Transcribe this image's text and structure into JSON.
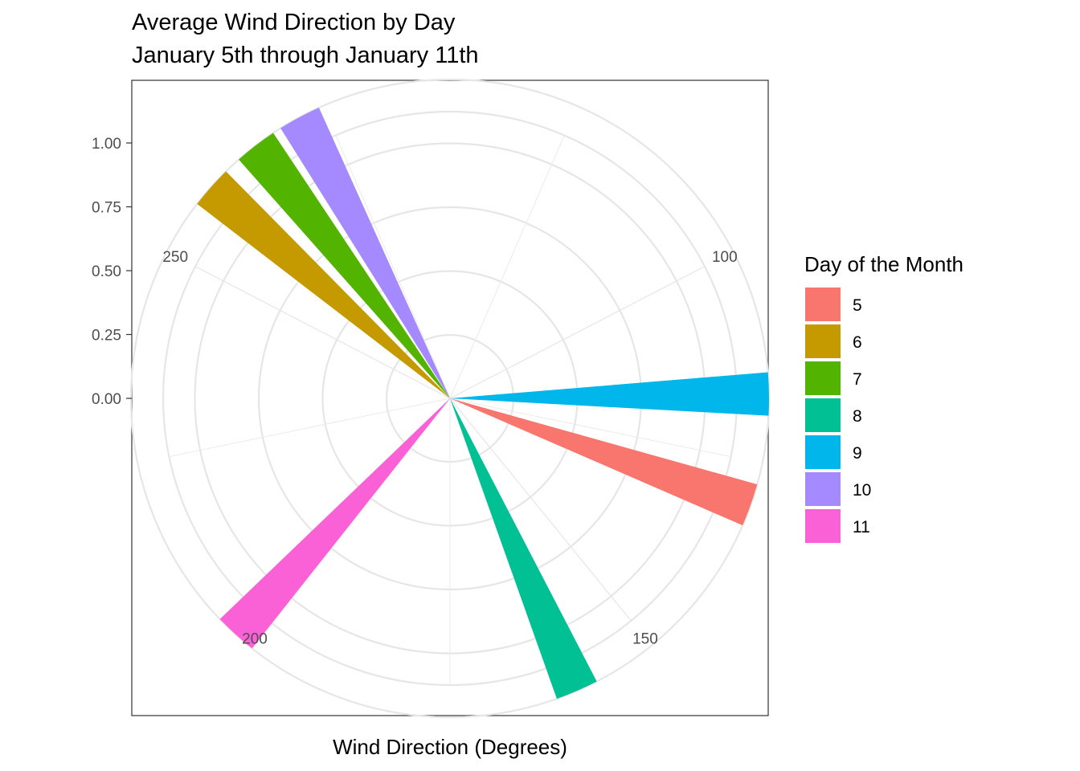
{
  "chart_data": {
    "type": "bar",
    "coord": "polar",
    "title": "Average Wind Direction by Day",
    "subtitle": "January 5th through January 11th",
    "xlabel": "Wind Direction (Degrees)",
    "ylabel": "",
    "theta_range": [
      60,
      290
    ],
    "theta_breaks": [
      "100",
      "150",
      "200",
      "250"
    ],
    "theta_break_values": [
      100,
      150,
      200,
      250
    ],
    "r_range": [
      -0.25,
      1.1
    ],
    "r_breaks": [
      "0.00",
      "0.25",
      "0.50",
      "0.75",
      "1.00"
    ],
    "r_break_values": [
      0,
      0.25,
      0.5,
      0.75,
      1.0
    ],
    "bar_width": 5,
    "grid": true,
    "legend": {
      "title": "Day of the Month",
      "position": "right",
      "entries": [
        {
          "label": "5",
          "color": "#F8766D"
        },
        {
          "label": "6",
          "color": "#C49A00"
        },
        {
          "label": "7",
          "color": "#53B400"
        },
        {
          "label": "8",
          "color": "#00C094"
        },
        {
          "label": "9",
          "color": "#00B6EB"
        },
        {
          "label": "10",
          "color": "#A58AFF"
        },
        {
          "label": "11",
          "color": "#FB61D7"
        }
      ]
    },
    "series": [
      {
        "name": "5",
        "x": 130,
        "y": 1.0
      },
      {
        "name": "6",
        "x": 259,
        "y": 1.0
      },
      {
        "name": "7",
        "x": 266,
        "y": 1.0
      },
      {
        "name": "8",
        "x": 160,
        "y": 1.0
      },
      {
        "name": "9",
        "x": 117,
        "y": 1.0
      },
      {
        "name": "10",
        "x": 272,
        "y": 1.0
      },
      {
        "name": "11",
        "x": 202,
        "y": 1.0
      }
    ]
  }
}
